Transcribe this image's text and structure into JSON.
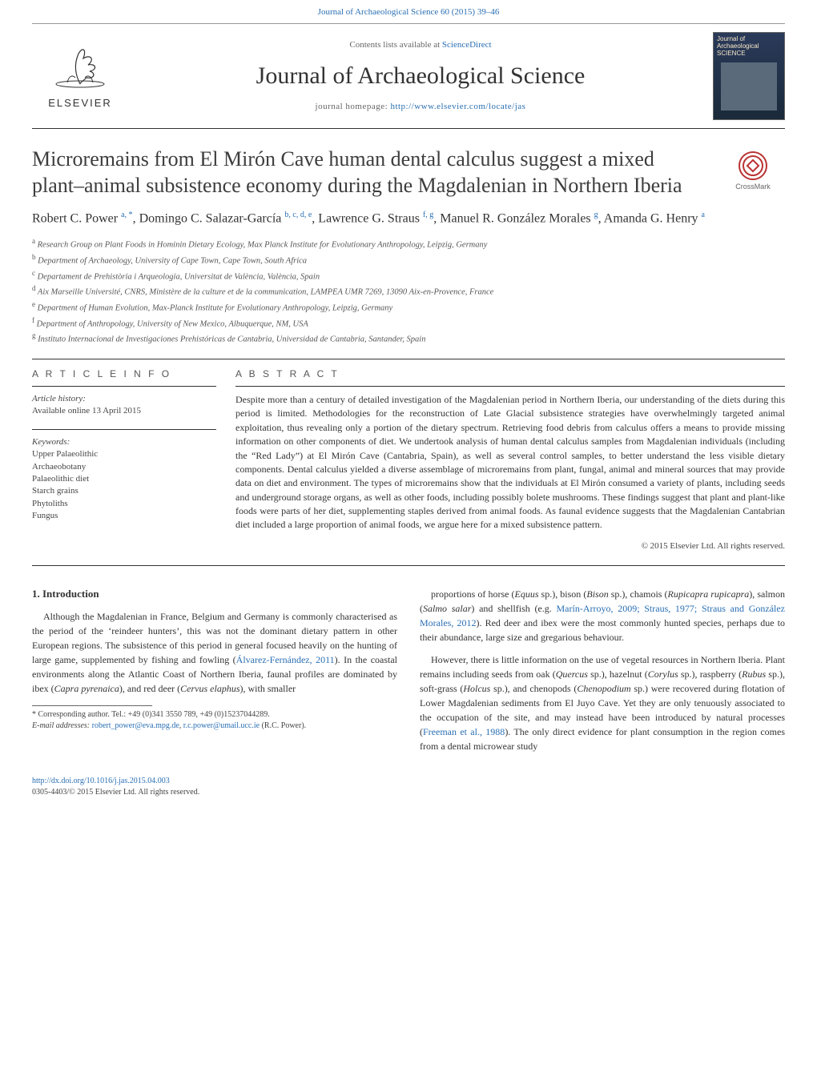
{
  "page": {
    "top_citation": "Journal of Archaeological Science 60 (2015) 39–46",
    "contents_line_prefix": "Contents lists available at ",
    "sciencedirect": "ScienceDirect",
    "journal_title": "Journal of Archaeological Science",
    "homepage_label": "journal homepage: ",
    "homepage_url": "http://www.elsevier.com/locate/jas",
    "elsevier": "ELSEVIER",
    "cover_caption": "Journal of Archaeological SCIENCE",
    "crossmark_label": "CrossMark"
  },
  "article": {
    "title": "Microremains from El Mirón Cave human dental calculus suggest a mixed plant–animal subsistence economy during the Magdalenian in Northern Iberia",
    "authors_html": "Robert C. Power <sup>a, *</sup>, Domingo C. Salazar-García <sup>b, c, d, e</sup>, Lawrence G. Straus <sup>f, g</sup>, Manuel R. González Morales <sup>g</sup>, Amanda G. Henry <sup>a</sup>",
    "affiliations": [
      {
        "sup": "a",
        "text": "Research Group on Plant Foods in Hominin Dietary Ecology, Max Planck Institute for Evolutionary Anthropology, Leipzig, Germany"
      },
      {
        "sup": "b",
        "text": "Department of Archaeology, University of Cape Town, Cape Town, South Africa"
      },
      {
        "sup": "c",
        "text": "Departament de Prehistòria i Arqueologia, Universitat de València, València, Spain"
      },
      {
        "sup": "d",
        "text": "Aix Marseille Université, CNRS, Ministère de la culture et de la communication, LAMPEA UMR 7269, 13090 Aix-en-Provence, France"
      },
      {
        "sup": "e",
        "text": "Department of Human Evolution, Max-Planck Institute for Evolutionary Anthropology, Leipzig, Germany"
      },
      {
        "sup": "f",
        "text": "Department of Anthropology, University of New Mexico, Albuquerque, NM, USA"
      },
      {
        "sup": "g",
        "text": "Instituto Internacional de Investigaciones Prehistóricas de Cantabria, Universidad de Cantabria, Santander, Spain"
      }
    ]
  },
  "meta": {
    "info_heading": "A R T I C L E   I N F O",
    "abstract_heading": "A B S T R A C T",
    "history_label": "Article history:",
    "history_line": "Available online 13 April 2015",
    "keywords_label": "Keywords:",
    "keywords": [
      "Upper Palaeolithic",
      "Archaeobotany",
      "Palaeolithic diet",
      "Starch grains",
      "Phytoliths",
      "Fungus"
    ],
    "abstract": "Despite more than a century of detailed investigation of the Magdalenian period in Northern Iberia, our understanding of the diets during this period is limited. Methodologies for the reconstruction of Late Glacial subsistence strategies have overwhelmingly targeted animal exploitation, thus revealing only a portion of the dietary spectrum. Retrieving food debris from calculus offers a means to provide missing information on other components of diet. We undertook analysis of human dental calculus samples from Magdalenian individuals (including the “Red Lady”) at El Mirón Cave (Cantabria, Spain), as well as several control samples, to better understand the less visible dietary components. Dental calculus yielded a diverse assemblage of microremains from plant, fungal, animal and mineral sources that may provide data on diet and environment. The types of microremains show that the individuals at El Mirón consumed a variety of plants, including seeds and underground storage organs, as well as other foods, including possibly bolete mushrooms. These findings suggest that plant and plant-like foods were parts of her diet, supplementing staples derived from animal foods. As faunal evidence suggests that the Magdalenian Cantabrian diet included a large proportion of animal foods, we argue here for a mixed subsistence pattern.",
    "copyright": "© 2015 Elsevier Ltd. All rights reserved."
  },
  "body": {
    "intro_heading": "1.  Introduction",
    "p1_a": "Although the Magdalenian in France, Belgium and Germany is commonly characterised as the period of the ‘reindeer hunters’, this was not the dominant dietary pattern in other European regions. The subsistence of this period in general focused heavily on the hunting of large game, supplemented by fishing and fowling (",
    "p1_link1": "Álvarez-Fernández, 2011",
    "p1_b": "). In the coastal environments along the Atlantic Coast of Northern Iberia, faunal profiles are dominated by ibex (",
    "p1_i1": "Capra pyrenaica",
    "p1_c": "), and red deer (",
    "p1_i2": "Cervus elaphus",
    "p1_d": "), with smaller",
    "p2_a": "proportions of horse (",
    "p2_i1": "Equus",
    "p2_b": " sp.), bison (",
    "p2_i2": "Bison",
    "p2_c": " sp.), chamois (",
    "p2_i3": "Rupicapra rupicapra",
    "p2_d": "), salmon (",
    "p2_i4": "Salmo salar",
    "p2_e": ") and shellfish (e.g. ",
    "p2_link1": "Marín-Arroyo, 2009; Straus, 1977; Straus and González Morales, 2012",
    "p2_f": "). Red deer and ibex were the most commonly hunted species, perhaps due to their abundance, large size and gregarious behaviour.",
    "p3_a": "However, there is little information on the use of vegetal resources in Northern Iberia. Plant remains including seeds from oak (",
    "p3_i1": "Quercus",
    "p3_b": " sp.), hazelnut (",
    "p3_i2": "Corylus",
    "p3_c": " sp.), raspberry (",
    "p3_i3": "Rubus",
    "p3_d": " sp.), soft-grass (",
    "p3_i4": "Holcus",
    "p3_e": " sp.), and chenopods (",
    "p3_i5": "Chenopodium",
    "p3_f": " sp.) were recovered during flotation of Lower Magdalenian sediments from El Juyo Cave. Yet they are only tenuously associated to the occupation of the site, and may instead have been introduced by natural processes (",
    "p3_link1": "Freeman et al., 1988",
    "p3_g": "). The only direct evidence for plant consumption in the region comes from a dental microwear study"
  },
  "footnotes": {
    "corr": "* Corresponding author. Tel.: +49 (0)341 3550 789, +49 (0)15237044289.",
    "email_label": "E-mail addresses: ",
    "email1": "robert_power@eva.mpg.de",
    "email_sep": ", ",
    "email2": "r.c.power@umail.ucc.ie",
    "email_tail": " (R.C. Power)."
  },
  "footer": {
    "doi": "http://dx.doi.org/10.1016/j.jas.2015.04.003",
    "issn_line": "0305-4403/© 2015 Elsevier Ltd. All rights reserved."
  },
  "style": {
    "link_color": "#2a6fb3",
    "text_color": "#333333",
    "muted_color": "#666666",
    "rule_color": "#333333",
    "background": "#ffffff",
    "journal_title_fontsize": 30,
    "article_title_fontsize": 26,
    "body_fontsize": 12
  }
}
